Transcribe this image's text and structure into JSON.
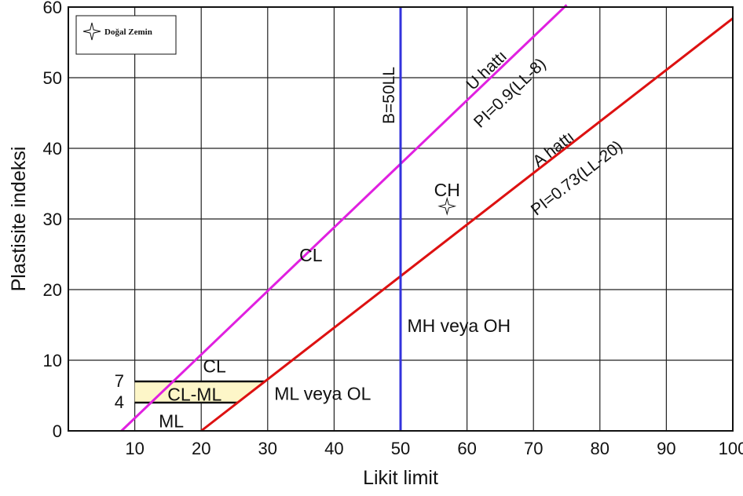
{
  "chart_data": {
    "type": "line",
    "xlabel": "Likit limit",
    "ylabel": "Plastisite indeksi",
    "xlim": [
      0,
      100
    ],
    "ylim": [
      0,
      60
    ],
    "x_ticks": [
      10,
      20,
      30,
      40,
      50,
      60,
      70,
      80,
      90,
      100
    ],
    "y_ticks": [
      0,
      10,
      20,
      30,
      40,
      50,
      60
    ],
    "y_extra_ticks": [
      4,
      7
    ],
    "grid": true,
    "series": [
      {
        "name": "U hattı",
        "color": "#e020e0",
        "x": [
          8,
          75
        ],
        "y": [
          0,
          60.3
        ]
      },
      {
        "name": "A hattı",
        "color": "#dd1111",
        "x": [
          20,
          100
        ],
        "y": [
          0,
          58.4
        ]
      },
      {
        "name": "B=50LL",
        "color": "#3333dd",
        "x": [
          50,
          50
        ],
        "y": [
          0,
          60
        ]
      }
    ],
    "line_labels": {
      "u_name": "U hattı",
      "u_eq": "PI=0.9(LL-8)",
      "a_name": "A hattı",
      "a_eq": "PI=0.73(LL-20)",
      "b": "B=50LL"
    },
    "regions": {
      "ch": "CH",
      "cl_upper": "CL",
      "mh_oh": "MH veya OH",
      "cl_lower": "CL",
      "cl_ml": "CL-ML",
      "ml": "ML",
      "ml_ol": "ML veya OL"
    },
    "cl_ml_band": {
      "x_start": 10,
      "y_low": 4,
      "y_high": 7,
      "fill": "#fdf6c8"
    },
    "points": [
      {
        "name": "Doğal Zemin",
        "x": 57,
        "y": 31.8
      }
    ],
    "legend": {
      "position": "top-left",
      "entries": [
        "Doğal Zemin"
      ]
    }
  }
}
